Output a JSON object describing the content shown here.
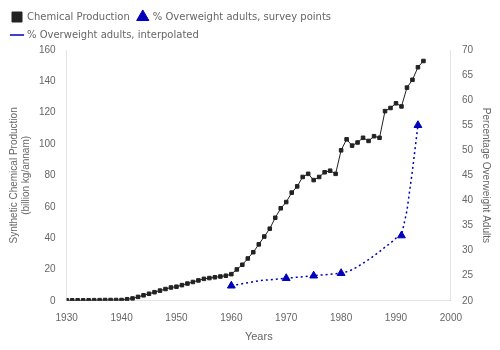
{
  "chart_data": {
    "type": "line",
    "xlabel": "Years",
    "ylabel": "Synthetic Chemical Production\n(billion kg/annam)",
    "y2label": "Percentage Overweight Adults",
    "xlim": [
      1930,
      2000
    ],
    "xticks": [
      1930,
      1940,
      1950,
      1960,
      1970,
      1980,
      1990,
      2000
    ],
    "ylim": [
      0,
      160
    ],
    "yticks": [
      0,
      20,
      40,
      60,
      80,
      100,
      120,
      140,
      160
    ],
    "y2lim": [
      20,
      70
    ],
    "y2ticks": [
      20,
      25,
      30,
      35,
      40,
      45,
      50,
      55,
      60,
      65,
      70
    ],
    "grid": false,
    "legend": "upper left",
    "series": [
      {
        "name": "Chemical Production",
        "color": "#222222",
        "marker": "square",
        "line_style": "solid",
        "axis": "y",
        "x": [
          1930,
          1931,
          1932,
          1933,
          1934,
          1935,
          1936,
          1937,
          1938,
          1939,
          1940,
          1941,
          1942,
          1943,
          1944,
          1945,
          1946,
          1947,
          1948,
          1949,
          1950,
          1951,
          1952,
          1953,
          1954,
          1955,
          1956,
          1957,
          1958,
          1959,
          1960,
          1961,
          1962,
          1963,
          1964,
          1965,
          1966,
          1967,
          1968,
          1969,
          1970,
          1971,
          1972,
          1973,
          1974,
          1975,
          1976,
          1977,
          1978,
          1979,
          1980,
          1981,
          1982,
          1983,
          1984,
          1985,
          1986,
          1987,
          1988,
          1989,
          1990,
          1991,
          1992,
          1993,
          1994,
          1995
        ],
        "values": [
          0.3,
          0.3,
          0.3,
          0.3,
          0.3,
          0.4,
          0.4,
          0.5,
          0.5,
          0.5,
          0.5,
          1.0,
          1.5,
          2.5,
          3.5,
          4.5,
          5.5,
          6.5,
          7.5,
          8.5,
          9.0,
          10.0,
          11.0,
          12.0,
          13.0,
          14.0,
          14.5,
          15.0,
          15.5,
          16.0,
          17.0,
          20.0,
          23.0,
          27.0,
          31.0,
          36.0,
          41.0,
          46.0,
          53.0,
          59.0,
          63.0,
          69.0,
          73.0,
          79.0,
          81.0,
          77.0,
          79.0,
          82.0,
          83.0,
          81.0,
          96.0,
          103.0,
          99.0,
          101.0,
          104.0,
          102.0,
          105.0,
          104.0,
          121.0,
          123.0,
          126.0,
          124.0,
          136.0,
          141.0,
          149.0,
          153.0
        ]
      },
      {
        "name": "% Overweight adults, survey\npoints",
        "color": "#0000bb",
        "marker": "triangle",
        "line_style": "none",
        "axis": "y2",
        "x": [
          1960,
          1970,
          1975,
          1980,
          1991,
          1994
        ],
        "values": [
          23.0,
          24.5,
          25.0,
          25.5,
          33.0,
          55.0
        ]
      },
      {
        "name": "% Overweight adults,\ninterpolated",
        "color": "#0000bb",
        "marker": "none",
        "line_style": "dotted",
        "axis": "y2",
        "x": [
          1960,
          1961,
          1962,
          1963,
          1964,
          1965,
          1966,
          1967,
          1968,
          1969,
          1970,
          1971,
          1972,
          1973,
          1974,
          1975,
          1976,
          1977,
          1978,
          1979,
          1980,
          1981,
          1982,
          1983,
          1984,
          1985,
          1986,
          1987,
          1988,
          1989,
          1990,
          1991,
          1992,
          1993,
          1994
        ],
        "values": [
          23.0,
          23.2,
          23.4,
          23.6,
          23.8,
          24.0,
          24.1,
          24.2,
          24.3,
          24.4,
          24.5,
          24.6,
          24.7,
          24.8,
          24.9,
          25.0,
          25.1,
          25.2,
          25.3,
          25.4,
          25.5,
          25.8,
          26.2,
          26.8,
          27.5,
          28.2,
          29.0,
          29.8,
          30.7,
          31.5,
          32.5,
          33.0,
          38.0,
          46.0,
          55.0
        ]
      }
    ]
  }
}
